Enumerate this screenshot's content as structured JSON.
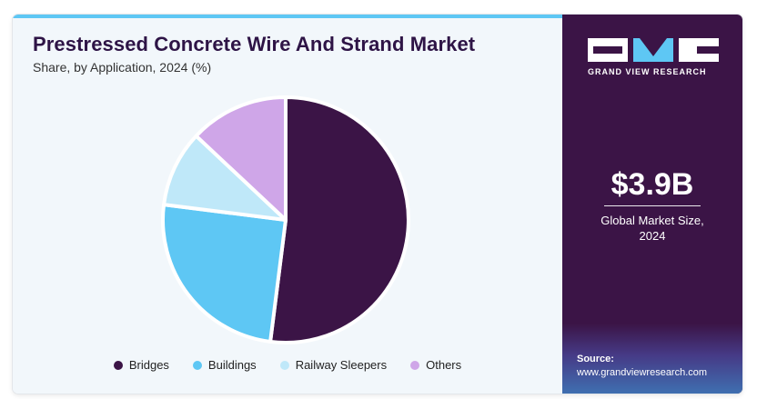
{
  "header": {
    "title": "Prestressed Concrete Wire And Strand Market",
    "subtitle": "Share, by Application, 2024 (%)"
  },
  "chart_data": {
    "type": "pie",
    "categories": [
      "Bridges",
      "Buildings",
      "Railway Sleepers",
      "Others"
    ],
    "values": [
      52,
      25,
      10,
      13
    ],
    "colors": [
      "#3b1446",
      "#5ec7f4",
      "#bfe8f9",
      "#cfa6e8"
    ],
    "legend_position": "bottom-center",
    "start": "12 o'clock",
    "direction": "clockwise"
  },
  "sidebar": {
    "logo_text": "GRAND VIEW RESEARCH",
    "market_value": "$3.9B",
    "market_label_line1": "Global Market Size,",
    "market_label_line2": "2024",
    "source_label": "Source:",
    "source_url": "www.grandviewresearch.com"
  },
  "colors": {
    "sidebar_bg": "#3b1446",
    "accent": "#5ec7f4",
    "panel_bg": "#f2f7fb"
  }
}
